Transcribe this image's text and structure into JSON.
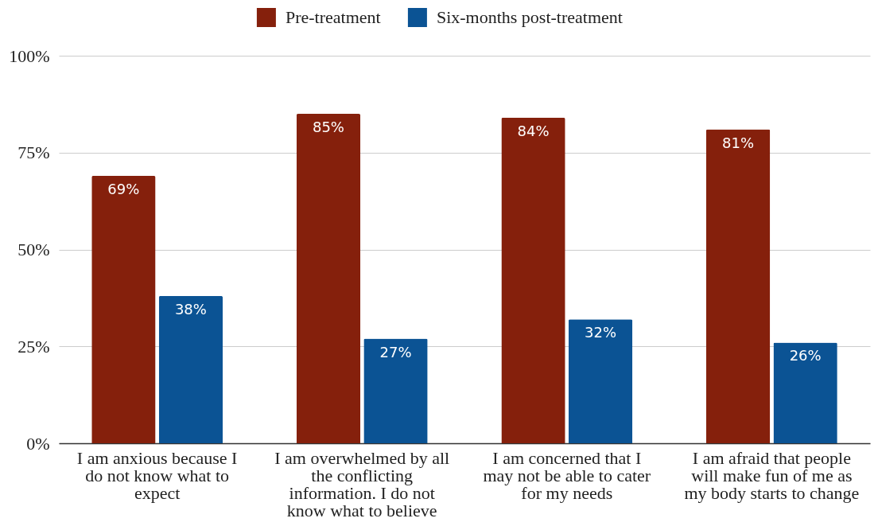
{
  "chart_data": {
    "type": "bar",
    "categories": [
      "I am anxious because I do not know what to expect",
      "I am overwhelmed by all the conflicting information. I do not know what to believe",
      "I am concerned that I may not be able to cater for my needs",
      "I am afraid that people will make fun of me as my body starts to change"
    ],
    "series": [
      {
        "name": "Pre-treatment",
        "color": "#85200c",
        "values": [
          69,
          85,
          84,
          81
        ],
        "value_labels": [
          "69%",
          "85%",
          "84%",
          "81%"
        ]
      },
      {
        "name": "Six-months post-treatment",
        "color": "#0b5394",
        "values": [
          38,
          27,
          32,
          26
        ],
        "value_labels": [
          "38%",
          "27%",
          "32%",
          "26%"
        ]
      }
    ],
    "ylim": [
      0,
      100
    ],
    "yticks": [
      {
        "value": 0,
        "label": "0%"
      },
      {
        "value": 25,
        "label": "25%"
      },
      {
        "value": 50,
        "label": "50%"
      },
      {
        "value": 75,
        "label": "75%"
      },
      {
        "value": 100,
        "label": "100%"
      }
    ],
    "grid": "y",
    "legend": "top"
  }
}
